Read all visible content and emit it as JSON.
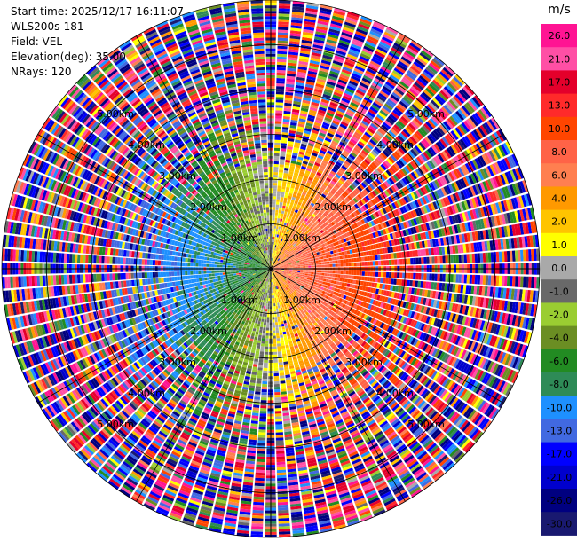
{
  "info": {
    "start_time": "Start time: 2025/12/17 16:11:07",
    "station": "WLS200s-181",
    "field": "Field: VEL",
    "elevation": "Elevation(deg): 35.00",
    "nrays": "NRays: 120"
  },
  "chart_data": {
    "type": "heatmap",
    "title": "",
    "field": "VEL",
    "projection": "polar-ppi",
    "n_rays": 120,
    "max_range_km": 6.0,
    "range_rings_km": [
      1.0,
      2.0,
      3.0,
      4.0,
      5.0,
      6.0
    ],
    "range_ring_labels": [
      "1.00km",
      "2.00km",
      "3.00km",
      "4.00km",
      "5.00km"
    ],
    "colorbar": {
      "unit": "m/s",
      "ticks": [
        "26.0",
        "21.0",
        "17.0",
        "13.0",
        "10.0",
        "8.0",
        "6.0",
        "4.0",
        "2.0",
        "1.0",
        "0.0",
        "-1.0",
        "-2.0",
        "-4.0",
        "-6.0",
        "-8.0",
        "-10.0",
        "-13.0",
        "-17.0",
        "-21.0",
        "-26.0",
        "-30.0"
      ],
      "colors": [
        "#ff1493",
        "#ff4fa5",
        "#e4002b",
        "#ff2a2a",
        "#ff4500",
        "#ff6347",
        "#ff7f50",
        "#ff9900",
        "#ffc400",
        "#ffff00",
        "#a9a9a9",
        "#696969",
        "#9acd32",
        "#6b8e23",
        "#228b22",
        "#2e8b57",
        "#1e90ff",
        "#4169e1",
        "#0000ff",
        "#0000cd",
        "#000080",
        "#191970"
      ]
    },
    "wind_pattern": {
      "approaching_side": "west",
      "receding_side": "east",
      "inner_clean_radius_km": 2.3
    }
  }
}
